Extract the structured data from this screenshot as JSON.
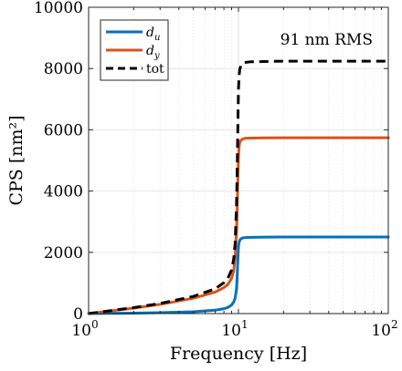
{
  "chart_data": {
    "type": "line",
    "xscale": "log",
    "xlim": [
      1,
      100
    ],
    "ylim": [
      0,
      10000
    ],
    "xlabel": "Frequency [Hz]",
    "ylabel": "CPS [nm²]",
    "yticks": [
      0,
      2000,
      4000,
      6000,
      8000,
      10000
    ],
    "ytick_labels": [
      "0",
      "2000",
      "4000",
      "6000",
      "8000",
      "10000"
    ],
    "xticks": [
      1,
      10,
      100
    ],
    "xtick_labels": [
      {
        "base": "10",
        "exp": "0"
      },
      {
        "base": "10",
        "exp": "1"
      },
      {
        "base": "10",
        "exp": "2"
      }
    ],
    "grid": true,
    "legend_position": "top-left",
    "annotation": "91 nm RMS",
    "series": [
      {
        "name": "du",
        "label_base": "d",
        "label_sub": "u",
        "color": "#0072BD",
        "dash": "solid",
        "x": [
          1,
          2,
          3,
          5,
          7,
          8,
          8.5,
          9,
          9.3,
          9.5,
          9.7,
          9.8,
          9.9,
          10,
          10.1,
          10.2,
          10.4,
          10.7,
          11,
          12,
          15,
          20,
          50,
          100
        ],
        "y": [
          0,
          15,
          30,
          60,
          110,
          160,
          200,
          280,
          380,
          500,
          800,
          1200,
          1700,
          2200,
          2330,
          2390,
          2440,
          2470,
          2480,
          2490,
          2495,
          2500,
          2500,
          2500
        ]
      },
      {
        "name": "dy",
        "label_base": "d",
        "label_sub": "y",
        "color": "#D95319",
        "dash": "solid",
        "x": [
          1,
          2,
          3,
          5,
          7,
          8,
          8.5,
          9,
          9.3,
          9.5,
          9.7,
          9.8,
          9.9,
          10,
          10.1,
          10.2,
          10.4,
          10.7,
          11,
          12,
          15,
          20,
          50,
          100
        ],
        "y": [
          0,
          180,
          300,
          500,
          700,
          850,
          950,
          1150,
          1400,
          1800,
          2700,
          3400,
          4300,
          5100,
          5450,
          5580,
          5660,
          5700,
          5720,
          5730,
          5735,
          5740,
          5740,
          5740
        ]
      },
      {
        "name": "tot",
        "label_base": "tot",
        "label_sub": "",
        "color": "#000000",
        "dash": "dashed",
        "x": [
          1,
          2,
          3,
          5,
          7,
          8,
          8.5,
          9,
          9.3,
          9.5,
          9.7,
          9.8,
          9.9,
          10,
          10.1,
          10.2,
          10.4,
          10.7,
          11,
          12,
          15,
          20,
          50,
          100
        ],
        "y": [
          0,
          195,
          330,
          560,
          810,
          1010,
          1150,
          1430,
          1780,
          2300,
          3500,
          4600,
          6000,
          7300,
          7780,
          7970,
          8100,
          8170,
          8200,
          8220,
          8230,
          8240,
          8240,
          8240
        ]
      }
    ]
  }
}
